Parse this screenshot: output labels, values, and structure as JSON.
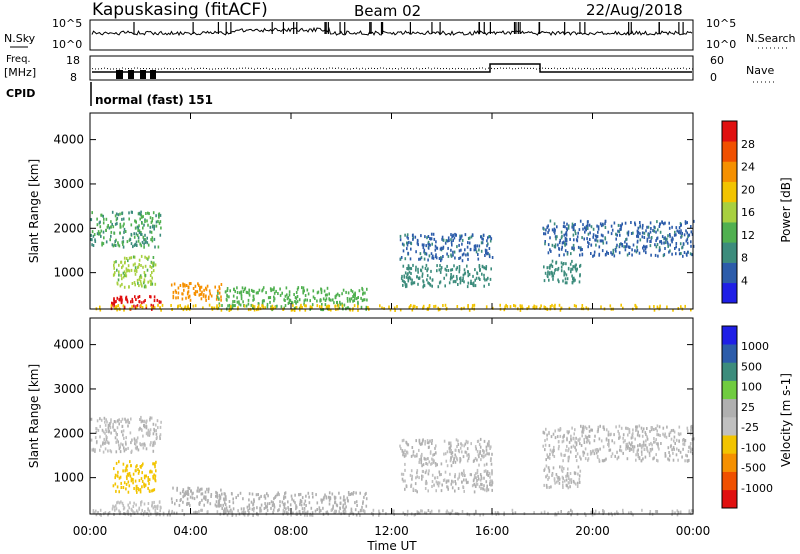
{
  "header": {
    "station": "Kapuskasing (fitACF)",
    "beam": "Beam 02",
    "date": "22/Aug/2018"
  },
  "panel_labels": {
    "nsky": "N.Sky",
    "nsearch": "N.Search",
    "freq": "Freq.",
    "mhz": "[MHz]",
    "nave": "Nave",
    "cpid": "CPID",
    "cpid_text": "normal (fast) 151"
  },
  "noise_ticks": {
    "top": "10^5",
    "bottom": "10^0"
  },
  "freq_ticks": [
    "18",
    "8"
  ],
  "nave_ticks": [
    "60",
    "0"
  ],
  "colors": {
    "power": [
      "#1f1fe6",
      "#2c5caa",
      "#3c8c7c",
      "#50b050",
      "#a8d040",
      "#f2c400",
      "#f59000",
      "#f05000",
      "#e01010"
    ],
    "velocity": [
      "#e01010",
      "#f05000",
      "#f59000",
      "#f2c400",
      "#c0c0c0",
      "#b0b0b0",
      "#70cc40",
      "#3c8c7c",
      "#2c5caa",
      "#1f1fe6"
    ]
  },
  "chart_data": [
    {
      "type": "heatmap",
      "title": "Power",
      "xlabel": "Time UT",
      "ylabel": "Slant Range [km]",
      "xticks": [
        "00:00",
        "04:00",
        "08:00",
        "12:00",
        "16:00",
        "20:00",
        "00:00"
      ],
      "xlim": [
        0,
        24
      ],
      "yticks": [
        "1000",
        "2000",
        "3000",
        "4000"
      ],
      "ylim": [
        180,
        4600
      ],
      "colorbar": {
        "label": "Power [dB]",
        "ticks": [
          "4",
          "8",
          "12",
          "16",
          "20",
          "24",
          "28"
        ],
        "range": [
          0,
          30
        ]
      },
      "regions": [
        {
          "t": [
            0.0,
            2.8
          ],
          "r": [
            1600,
            2400
          ],
          "value": 10
        },
        {
          "t": [
            0.9,
            2.6
          ],
          "r": [
            700,
            1400
          ],
          "value": 14
        },
        {
          "t": [
            0.8,
            2.8
          ],
          "r": [
            200,
            500
          ],
          "value": 28
        },
        {
          "t": [
            3.2,
            5.2
          ],
          "r": [
            400,
            800
          ],
          "value": 22
        },
        {
          "t": [
            5.0,
            11.0
          ],
          "r": [
            200,
            700
          ],
          "value": 12
        },
        {
          "t": [
            12.3,
            16.0
          ],
          "r": [
            1300,
            1900
          ],
          "value": 6
        },
        {
          "t": [
            12.3,
            16.0
          ],
          "r": [
            700,
            1200
          ],
          "value": 8
        },
        {
          "t": [
            18.0,
            24.0
          ],
          "r": [
            1400,
            2200
          ],
          "value": 6
        },
        {
          "t": [
            18.0,
            19.5
          ],
          "r": [
            800,
            1300
          ],
          "value": 8
        },
        {
          "t": [
            0.0,
            24.0
          ],
          "r": [
            180,
            300
          ],
          "value": 18
        }
      ]
    },
    {
      "type": "heatmap",
      "title": "Velocity",
      "xlabel": "Time UT",
      "ylabel": "Slant Range [km]",
      "xticks": [
        "00:00",
        "04:00",
        "08:00",
        "12:00",
        "16:00",
        "20:00",
        "00:00"
      ],
      "xlim": [
        0,
        24
      ],
      "yticks": [
        "1000",
        "2000",
        "3000",
        "4000"
      ],
      "ylim": [
        180,
        4600
      ],
      "colorbar": {
        "label": "Velocity [m s-1]",
        "ticks": [
          "-1000",
          "-500",
          "-100",
          "-25",
          "25",
          "100",
          "500",
          "1000"
        ],
        "range": [
          -1250,
          1250
        ]
      },
      "regions": [
        {
          "t": [
            0.0,
            2.8
          ],
          "r": [
            1600,
            2400
          ],
          "value": -20
        },
        {
          "t": [
            0.9,
            2.6
          ],
          "r": [
            700,
            1400
          ],
          "value": -400
        },
        {
          "t": [
            0.8,
            2.8
          ],
          "r": [
            200,
            500
          ],
          "value": -150
        },
        {
          "t": [
            3.2,
            5.2
          ],
          "r": [
            400,
            800
          ],
          "value": 150
        },
        {
          "t": [
            5.0,
            11.0
          ],
          "r": [
            200,
            700
          ],
          "value": 120
        },
        {
          "t": [
            12.3,
            16.0
          ],
          "r": [
            1300,
            1900
          ],
          "value": 0
        },
        {
          "t": [
            12.3,
            16.0
          ],
          "r": [
            700,
            1200
          ],
          "value": 0
        },
        {
          "t": [
            18.0,
            24.0
          ],
          "r": [
            1400,
            2200
          ],
          "value": 0
        },
        {
          "t": [
            18.0,
            19.5
          ],
          "r": [
            800,
            1300
          ],
          "value": 0
        },
        {
          "t": [
            0.0,
            24.0
          ],
          "r": [
            180,
            300
          ],
          "value": -60
        }
      ]
    }
  ]
}
